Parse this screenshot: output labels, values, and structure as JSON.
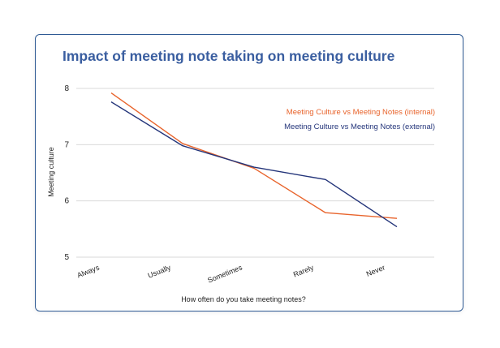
{
  "chart_data": {
    "type": "line",
    "title": "Impact of meeting note taking on meeting culture",
    "xlabel": "How often do you take meeting notes?",
    "ylabel": "Meeting culture",
    "categories": [
      "Always",
      "Usually",
      "Sometimes",
      "Rarely",
      "Never"
    ],
    "ylim": [
      5,
      8
    ],
    "yticks": [
      "5",
      "6",
      "7",
      "8"
    ],
    "grid": true,
    "legend_position": "top-right",
    "series": [
      {
        "name": "Meeting Culture vs Meeting Notes (internal)",
        "color": "#e8642c",
        "values": [
          7.92,
          7.02,
          6.58,
          5.79,
          5.69
        ]
      },
      {
        "name": "Meeting Culture vs Meeting Notes (external)",
        "color": "#24357a",
        "values": [
          7.76,
          6.98,
          6.6,
          6.38,
          5.54
        ]
      }
    ]
  },
  "colors": {
    "title": "#3a5ea0",
    "axis_text": "#222222",
    "grid": "#d9d9d9",
    "card_border": "#2e5a94"
  }
}
